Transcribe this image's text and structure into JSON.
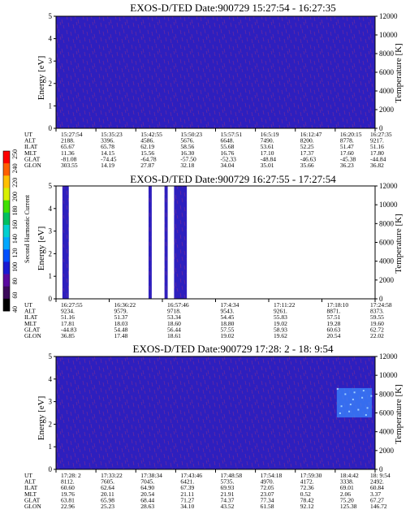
{
  "chart_data": {
    "type": "heatmap",
    "instrument": "EXOS-D/TED",
    "date_label": "Date:900729",
    "panels": [
      {
        "title_time": "15:27:54 - 16:27:35",
        "ylabel": "Energy [eV]",
        "ylabel_right": "Temperature [K]",
        "ylim": [
          0,
          5
        ],
        "yticks": [
          "0",
          "1",
          "2",
          "3",
          "4",
          "5"
        ],
        "ylim_right": [
          0,
          12000
        ],
        "yticks_right": [
          "0",
          "2000",
          "4000",
          "6000",
          "8000",
          "10000",
          "12000"
        ],
        "data_gaps": [],
        "enhancement": null,
        "ephem": {
          "labels": [
            "UT",
            "ALT",
            "ILAT",
            "MLT",
            "GLAT",
            "GLON"
          ],
          "columns": [
            [
              "15:27:54",
              "2188.",
              "65.67",
              "11.36",
              "-81.08",
              "303.55"
            ],
            [
              "15:35:23",
              "3396.",
              "65.78",
              "14.15",
              "-74.45",
              "14.19"
            ],
            [
              "15:42:55",
              "4586.",
              "62.19",
              "15.56",
              "-64.78",
              "27.87"
            ],
            [
              "15:50:23",
              "5676.",
              "58.56",
              "16.30",
              "-57.50",
              "32.18"
            ],
            [
              "15:57:51",
              "6648.",
              "55.68",
              "16.76",
              "-52.33",
              "34.04"
            ],
            [
              "16:5:19",
              "7490.",
              "53.61",
              "17.10",
              "-48.84",
              "35.01"
            ],
            [
              "16:12:47",
              "8200.",
              "52.25",
              "17.37",
              "-46.63",
              "35.66"
            ],
            [
              "16:20:15",
              "8778.",
              "51.47",
              "17.60",
              "-45.38",
              "36.23"
            ],
            [
              "16:27:35",
              "9217.",
              "51.16",
              "17.80",
              "-44.84",
              "36.82"
            ]
          ]
        }
      },
      {
        "title_time": "16:27:55 - 17:27:54",
        "ylabel": "Energy [eV]",
        "ylabel_right": "Temperature [K]",
        "ylim": [
          0,
          5
        ],
        "yticks": [
          "0",
          "1",
          "2",
          "3",
          "4",
          "5"
        ],
        "ylim_right": [
          0,
          12000
        ],
        "yticks_right": [
          "0",
          "2000",
          "4000",
          "6000",
          "8000",
          "10000",
          "12000"
        ],
        "data_gaps": [
          [
            0.0,
            0.02
          ],
          [
            0.04,
            0.29
          ],
          [
            0.3,
            0.34
          ],
          [
            0.35,
            0.37
          ],
          [
            0.41,
            1.0
          ]
        ],
        "data_gaps_note": "fractions of the panel time axis with no data",
        "enhancement": null,
        "ephem": {
          "labels": [
            "UT",
            "ALT",
            "ILAT",
            "MLT",
            "GLAT",
            "GLON"
          ],
          "columns": [
            [
              "16:27:55",
              "9234.",
              "51.16",
              "17.81",
              "-44.83",
              "36.85"
            ],
            [
              "16:36:22",
              "9579.",
              "51.37",
              "18.03",
              "54.48",
              "17.48"
            ],
            [
              "16:57:46",
              "9718.",
              "53.34",
              "18.60",
              "56.44",
              "18.61"
            ],
            [
              "17:4:34",
              "9543.",
              "54.45",
              "18.80",
              "57.55",
              "19.02"
            ],
            [
              "17:11:22",
              "9261.",
              "55.83",
              "19.02",
              "58.93",
              "19.62"
            ],
            [
              "17:18:10",
              "8871.",
              "57.51",
              "19.28",
              "60.63",
              "20.54"
            ],
            [
              "17:24:58",
              "8373.",
              "59.55",
              "19.60",
              "62.72",
              "22.02"
            ]
          ]
        }
      },
      {
        "title_time": "17:28: 2 - 18: 9:54",
        "ylabel": "Energy [eV]",
        "ylabel_right": "Temperature [K]",
        "ylim": [
          0,
          5
        ],
        "yticks": [
          "0",
          "1",
          "2",
          "3",
          "4",
          "5"
        ],
        "ylim_right": [
          0,
          12000
        ],
        "yticks_right": [
          "0",
          "2000",
          "4000",
          "6000",
          "8000",
          "10000",
          "12000"
        ],
        "data_gaps": [],
        "enhancement": {
          "t_start": 0.88,
          "t_end": 0.99,
          "e_low": 2.3,
          "e_high": 3.6
        },
        "ephem": {
          "labels": [
            "UT",
            "ALT",
            "ILAT",
            "MLT",
            "GLAT",
            "GLON"
          ],
          "columns": [
            [
              "17:28: 2",
              "8112.",
              "60.60",
              "19.76",
              "63.81",
              "22.96"
            ],
            [
              "17:33:22",
              "7605.",
              "62.64",
              "20.11",
              "65.98",
              "25.23"
            ],
            [
              "17:38:34",
              "7045.",
              "64.90",
              "20.54",
              "68.44",
              "28.63"
            ],
            [
              "17:43:46",
              "6421.",
              "67.39",
              "21.11",
              "71.27",
              "34.10"
            ],
            [
              "17:48:58",
              "5735.",
              "69.93",
              "21.91",
              "74.37",
              "43.52"
            ],
            [
              "17:54:18",
              "4970.",
              "72.05",
              "23.07",
              "77.34",
              "61.58"
            ],
            [
              "17:59:30",
              "4172.",
              "72.36",
              "0.52",
              "78.42",
              "92.12"
            ],
            [
              "18:4:42",
              "3338.",
              "69.01",
              "2.06",
              "75.20",
              "125.38"
            ],
            [
              "18: 9:54",
              "2492.",
              "60.84",
              "3.37",
              "67.27",
              "146.72"
            ]
          ]
        }
      }
    ],
    "colorbar": {
      "label": "Second Harmonic Current",
      "ticks": [
        "40",
        "60",
        "80",
        "100",
        "120",
        "140",
        "160",
        "180",
        "200",
        "220",
        "240",
        "250"
      ],
      "colors": [
        "#000000",
        "#3b0a5a",
        "#5a0aa0",
        "#1a1ad2",
        "#0050ff",
        "#00a8ff",
        "#00d0d0",
        "#00c060",
        "#40e000",
        "#d8f000",
        "#ffc000",
        "#ff6000",
        "#ff0000"
      ]
    },
    "colors": {
      "background": "#2e1fbe",
      "noise": "#6a2a9c",
      "enhancement": "#3a88ff"
    }
  }
}
